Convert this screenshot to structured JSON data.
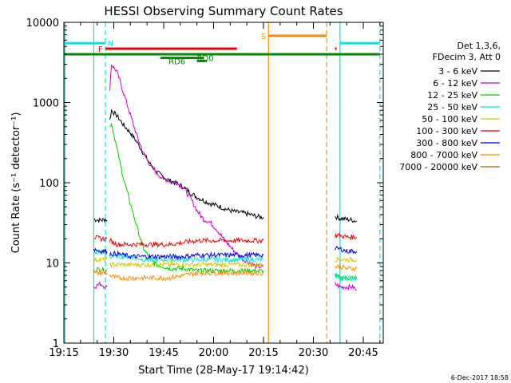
{
  "chart_data": {
    "type": "line",
    "title": "HESSI Observing Summary Count Rates",
    "xlabel": "Start Time (28-May-17 19:14:42)",
    "ylabel": "Count Rate (s⁻¹ detector⁻¹)",
    "footer": "6-Dec-2017 18:58",
    "x_unit": "minutes after 19:15",
    "xlim": [
      0,
      96
    ],
    "ylim": [
      1,
      10000
    ],
    "yscale": "log",
    "x_ticks": [
      {
        "v": 0,
        "label": "19:15"
      },
      {
        "v": 15,
        "label": "19:30"
      },
      {
        "v": 30,
        "label": "19:45"
      },
      {
        "v": 45,
        "label": "20:00"
      },
      {
        "v": 60,
        "label": "20:15"
      },
      {
        "v": 75,
        "label": "20:30"
      },
      {
        "v": 90,
        "label": "20:45"
      }
    ],
    "y_ticks": [
      {
        "v": 1,
        "label": "1"
      },
      {
        "v": 10,
        "label": "10"
      },
      {
        "v": 100,
        "label": "100"
      },
      {
        "v": 1000,
        "label": "1000"
      },
      {
        "v": 10000,
        "label": "10000"
      }
    ],
    "legend": {
      "header": [
        "Det 1,3,6,",
        "FDecim 3, Att 0"
      ],
      "placement": "right"
    },
    "series": [
      {
        "name": "3 - 6 keV",
        "color": "#000000",
        "segments": [
          [
            [
              9,
              35
            ],
            [
              11,
              34
            ],
            [
              12.5,
              35
            ],
            [
              13,
              34
            ]
          ],
          [
            [
              13.8,
              600
            ],
            [
              14.3,
              800
            ],
            [
              16,
              680
            ],
            [
              18,
              520
            ],
            [
              20,
              420
            ],
            [
              22,
              320
            ],
            [
              24,
              230
            ],
            [
              26,
              170
            ],
            [
              28,
              135
            ],
            [
              30,
              118
            ],
            [
              32,
              105
            ],
            [
              34,
              98
            ],
            [
              36,
              88
            ],
            [
              38,
              75
            ],
            [
              40,
              66
            ],
            [
              42,
              60
            ],
            [
              44,
              55
            ],
            [
              46,
              52
            ],
            [
              48,
              48
            ],
            [
              50,
              45
            ],
            [
              52,
              43
            ],
            [
              54,
              42
            ],
            [
              56,
              40
            ],
            [
              58,
              38
            ],
            [
              60,
              37
            ]
          ],
          [
            [
              81.5,
              38
            ],
            [
              83,
              36
            ],
            [
              85,
              35
            ],
            [
              87,
              34
            ],
            [
              88,
              33
            ]
          ]
        ]
      },
      {
        "name": "6 - 12 keV",
        "color": "#cc00cc",
        "segments": [
          [
            [
              9,
              5
            ],
            [
              11,
              5.5
            ],
            [
              12.5,
              5
            ],
            [
              13,
              5
            ]
          ],
          [
            [
              13.8,
              1500
            ],
            [
              14.3,
              3000
            ],
            [
              16,
              2400
            ],
            [
              18,
              1300
            ],
            [
              20,
              700
            ],
            [
              22,
              380
            ],
            [
              24,
              230
            ],
            [
              26,
              165
            ],
            [
              28,
              130
            ],
            [
              30,
              112
            ],
            [
              32,
              105
            ],
            [
              34,
              100
            ],
            [
              36,
              85
            ],
            [
              38,
              65
            ],
            [
              40,
              45
            ],
            [
              42,
              35
            ],
            [
              44,
              32
            ],
            [
              46,
              26
            ],
            [
              48,
              20
            ],
            [
              50,
              16
            ],
            [
              52,
              13
            ],
            [
              54,
              11
            ],
            [
              56,
              10
            ],
            [
              58,
              9
            ],
            [
              60,
              9
            ]
          ],
          [
            [
              81.5,
              5.5
            ],
            [
              83,
              5
            ],
            [
              85,
              5
            ],
            [
              87,
              5
            ],
            [
              88,
              4.5
            ]
          ]
        ]
      },
      {
        "name": "12 - 25 keV",
        "color": "#00cc00",
        "segments": [
          [
            [
              9,
              8
            ],
            [
              11,
              8.5
            ],
            [
              12.5,
              8
            ],
            [
              13,
              8
            ]
          ],
          [
            [
              13.8,
              500
            ],
            [
              14.3,
              560
            ],
            [
              16,
              260
            ],
            [
              18,
              110
            ],
            [
              20,
              55
            ],
            [
              22,
              28
            ],
            [
              23,
              20
            ],
            [
              24,
              15
            ],
            [
              26,
              11
            ],
            [
              28,
              9.5
            ],
            [
              30,
              9
            ],
            [
              32,
              8.5
            ],
            [
              36,
              8.5
            ],
            [
              40,
              8
            ],
            [
              44,
              8
            ],
            [
              48,
              8
            ],
            [
              52,
              8
            ],
            [
              56,
              8
            ],
            [
              60,
              8
            ]
          ],
          [
            [
              81.5,
              7
            ],
            [
              83,
              6.5
            ],
            [
              85,
              6.5
            ],
            [
              87,
              6.5
            ],
            [
              88,
              6.5
            ]
          ]
        ]
      },
      {
        "name": "25 - 50 keV",
        "color": "#00e5e5",
        "segments": [
          [
            [
              9,
              13
            ],
            [
              11,
              14
            ],
            [
              12.5,
              13
            ],
            [
              13,
              13
            ]
          ],
          [
            [
              13.8,
              12
            ],
            [
              16,
              12
            ],
            [
              20,
              12
            ],
            [
              24,
              11
            ],
            [
              28,
              11
            ],
            [
              32,
              11
            ],
            [
              36,
              11
            ],
            [
              40,
              11
            ],
            [
              44,
              11
            ],
            [
              48,
              11
            ],
            [
              52,
              11
            ],
            [
              56,
              11
            ],
            [
              60,
              11
            ]
          ],
          [
            [
              81.5,
              7
            ],
            [
              83,
              6.5
            ],
            [
              85,
              6.5
            ],
            [
              87,
              6.5
            ],
            [
              88,
              6.5
            ]
          ]
        ]
      },
      {
        "name": "50 - 100 keV",
        "color": "#d4c800",
        "segments": [
          [
            [
              9,
              11
            ],
            [
              11,
              11
            ],
            [
              12.5,
              11
            ],
            [
              13,
              11
            ]
          ],
          [
            [
              13.8,
              9.5
            ],
            [
              16,
              9.5
            ],
            [
              20,
              9.5
            ],
            [
              24,
              9.5
            ],
            [
              28,
              9.5
            ],
            [
              32,
              9.5
            ],
            [
              36,
              9.5
            ],
            [
              40,
              9.5
            ],
            [
              44,
              9.5
            ],
            [
              48,
              9.5
            ],
            [
              52,
              9.5
            ],
            [
              56,
              9.5
            ],
            [
              60,
              9.5
            ]
          ],
          [
            [
              81.5,
              11
            ],
            [
              83,
              11
            ],
            [
              85,
              11
            ],
            [
              87,
              11
            ],
            [
              88,
              11
            ]
          ]
        ]
      },
      {
        "name": "100 - 300 keV",
        "color": "#ee0000",
        "segments": [
          [
            [
              9,
              21
            ],
            [
              11,
              20
            ],
            [
              12.5,
              20
            ],
            [
              13,
              20
            ]
          ],
          [
            [
              13.8,
              19
            ],
            [
              16,
              17
            ],
            [
              20,
              17
            ],
            [
              24,
              17
            ],
            [
              28,
              17
            ],
            [
              32,
              17
            ],
            [
              36,
              18
            ],
            [
              40,
              19
            ],
            [
              44,
              19
            ],
            [
              48,
              19
            ],
            [
              52,
              19
            ],
            [
              56,
              19
            ],
            [
              60,
              19
            ]
          ],
          [
            [
              81.5,
              22
            ],
            [
              83,
              22
            ],
            [
              85,
              21
            ],
            [
              87,
              21
            ],
            [
              88,
              21
            ]
          ]
        ]
      },
      {
        "name": "300 - 800 keV",
        "color": "#0000ee",
        "segments": [
          [
            [
              9,
              15
            ],
            [
              11,
              14
            ],
            [
              12.5,
              14
            ],
            [
              13,
              14
            ]
          ],
          [
            [
              13.8,
              13
            ],
            [
              16,
              13
            ],
            [
              20,
              12
            ],
            [
              24,
              12
            ],
            [
              28,
              12
            ],
            [
              32,
              12
            ],
            [
              36,
              12
            ],
            [
              40,
              12.5
            ],
            [
              44,
              12.5
            ],
            [
              48,
              12.5
            ],
            [
              52,
              12.5
            ],
            [
              56,
              12.5
            ],
            [
              60,
              12.5
            ]
          ],
          [
            [
              81.5,
              15
            ],
            [
              83,
              15
            ],
            [
              85,
              14
            ],
            [
              87,
              14
            ],
            [
              88,
              14
            ]
          ]
        ]
      },
      {
        "name": "800 - 7000 keV",
        "color": "#ff8c00",
        "segments": [
          [
            [
              9,
              7.5
            ],
            [
              11,
              7.5
            ],
            [
              12.5,
              7.5
            ],
            [
              13,
              7.5
            ]
          ],
          [
            [
              13.8,
              7
            ],
            [
              16,
              6.5
            ],
            [
              20,
              6.5
            ],
            [
              24,
              6.5
            ],
            [
              28,
              6.5
            ],
            [
              32,
              6.5
            ],
            [
              36,
              7
            ],
            [
              40,
              7.5
            ],
            [
              44,
              7.5
            ],
            [
              48,
              7.5
            ],
            [
              52,
              7.5
            ],
            [
              56,
              7.5
            ],
            [
              60,
              7.5
            ]
          ],
          [
            [
              81.5,
              9
            ],
            [
              83,
              9
            ],
            [
              85,
              8.5
            ],
            [
              87,
              8.5
            ],
            [
              88,
              8.5
            ]
          ]
        ]
      },
      {
        "name": "7000 - 20000 keV",
        "color": "#8b6914",
        "segments": []
      }
    ],
    "annotations": {
      "vlines": [
        {
          "x": 0.3,
          "color": "#00e5e5",
          "style": "solid"
        },
        {
          "x": 9,
          "color": "#00e5e5",
          "style": "solid"
        },
        {
          "x": 12.5,
          "color": "#00e5e5",
          "style": "dash"
        },
        {
          "x": 61.5,
          "color": "#ff8c00",
          "style": "solid"
        },
        {
          "x": 79,
          "color": "#ff8c00",
          "style": "dash"
        },
        {
          "x": 83,
          "color": "#00e5e5",
          "style": "solid"
        },
        {
          "x": 95,
          "color": "#00e5e5",
          "style": "dash"
        }
      ],
      "bars": [
        {
          "label": "N",
          "color": "#00e5e5",
          "y": 5500,
          "x0": 0.3,
          "x1": 12.5,
          "label_x": 14
        },
        {
          "label": "",
          "color": "#00e5e5",
          "y": 5500,
          "x0": 83,
          "x1": 95,
          "label_x": null
        },
        {
          "label": "S",
          "color": "#ff8c00",
          "y": 6800,
          "x0": 61.5,
          "x1": 79,
          "label_x": 60
        },
        {
          "label": "F",
          "color": "#ee0000",
          "y": 4700,
          "x0": 12.5,
          "x1": 52,
          "label_x": 11
        },
        {
          "label": "",
          "color": "#ee0000",
          "y": 4700,
          "x0": 81.5,
          "x1": 82,
          "label_x": null
        },
        {
          "label": "",
          "color": "#008800",
          "y": 4000,
          "x0": 0.3,
          "x1": 95,
          "label_x": null
        },
        {
          "label": "RD0",
          "color": "#008800",
          "y": 3600,
          "x0": 29,
          "x1": 42,
          "label_x": 42.5
        },
        {
          "label": "RD6",
          "color": "#008800",
          "y": 3300,
          "x0": 40,
          "x1": 43,
          "label_x": 34
        }
      ]
    }
  }
}
